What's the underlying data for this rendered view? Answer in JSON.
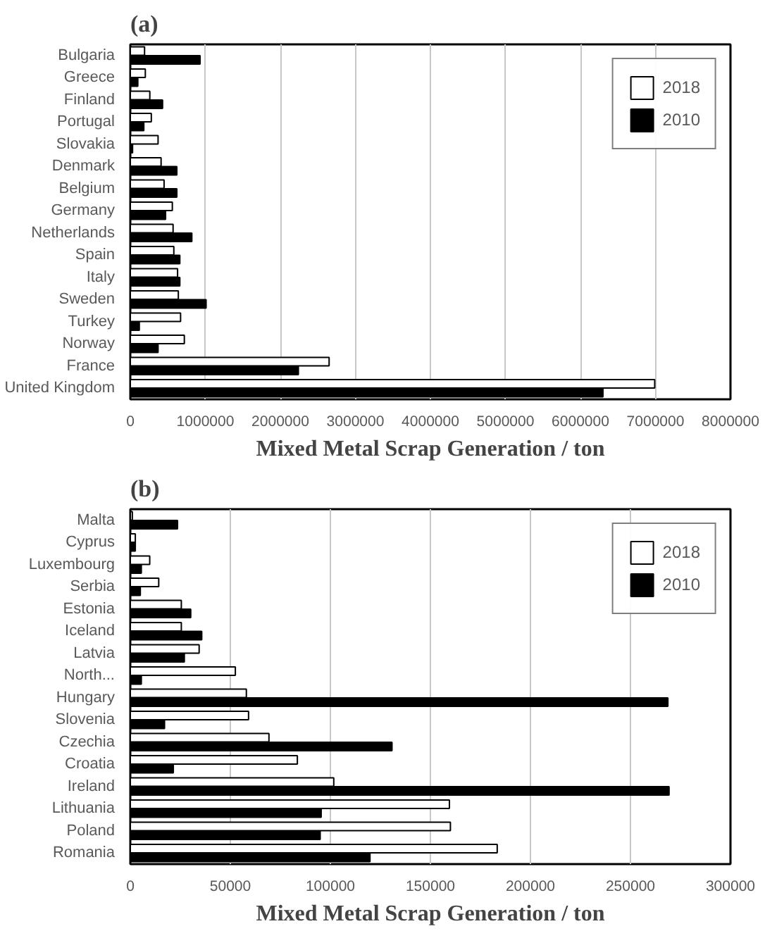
{
  "chart_data": [
    {
      "type": "bar",
      "orientation": "horizontal",
      "title": "(a)",
      "xlabel": "Mixed Metal Scrap Generation / ton",
      "categories": [
        "Bulgaria",
        "Greece",
        "Finland",
        "Portugal",
        "Slovakia",
        "Denmark",
        "Belgium",
        "Germany",
        "Netherlands",
        "Spain",
        "Italy",
        "Sweden",
        "Turkey",
        "Norway",
        "France",
        "United Kingdom"
      ],
      "series": [
        {
          "name": "2018",
          "color": "#ffffff",
          "values": [
            190000,
            200000,
            260000,
            280000,
            370000,
            410000,
            450000,
            560000,
            570000,
            580000,
            630000,
            640000,
            670000,
            720000,
            2650000,
            6990000
          ]
        },
        {
          "name": "2010",
          "color": "#000000",
          "values": [
            930000,
            100000,
            430000,
            180000,
            30000,
            620000,
            620000,
            470000,
            820000,
            660000,
            660000,
            1010000,
            120000,
            370000,
            2240000,
            6300000
          ]
        }
      ],
      "xlim": [
        0,
        8000000
      ],
      "xticks": [
        0,
        1000000,
        2000000,
        3000000,
        4000000,
        5000000,
        6000000,
        7000000,
        8000000
      ],
      "grid": "x",
      "legend": "top right"
    },
    {
      "type": "bar",
      "orientation": "horizontal",
      "title": "(b)",
      "xlabel": "Mixed Metal Scrap Generation / ton",
      "categories": [
        "Malta",
        "Cyprus",
        "Luxembourg",
        "Serbia",
        "Estonia",
        "Iceland",
        "Latvia",
        "North...",
        "Hungary",
        "Slovenia",
        "Czechia",
        "Croatia",
        "Ireland",
        "Lithuania",
        "Poland",
        "Romania"
      ],
      "series": [
        {
          "name": "2018",
          "color": "#ffffff",
          "values": [
            1000,
            2500,
            9700,
            14200,
            25500,
            25500,
            34400,
            52500,
            58000,
            59100,
            69300,
            83500,
            101700,
            159500,
            160000,
            183400
          ]
        },
        {
          "name": "2010",
          "color": "#000000",
          "values": [
            23600,
            2500,
            5500,
            5000,
            30200,
            35700,
            27000,
            5500,
            268700,
            17100,
            130800,
            21500,
            269300,
            95400,
            94900,
            119800
          ]
        }
      ],
      "xlim": [
        0,
        300000
      ],
      "xticks": [
        0,
        50000,
        100000,
        150000,
        200000,
        250000,
        300000
      ],
      "grid": "x",
      "legend": "top right"
    }
  ]
}
